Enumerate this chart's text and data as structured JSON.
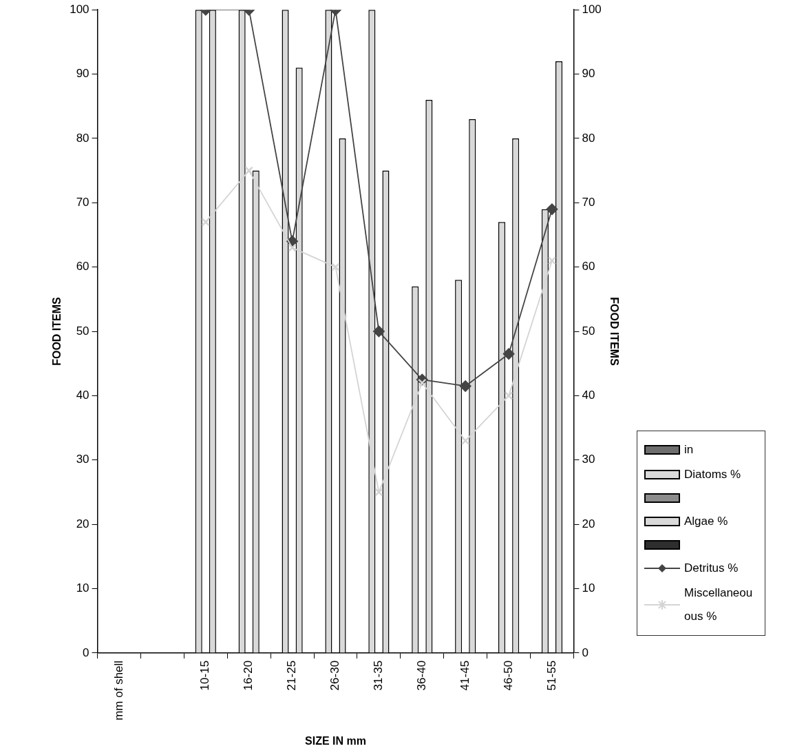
{
  "chart_data": {
    "type": "bar",
    "xlabel": "SIZE IN mm",
    "ylabel": "FOOD ITEMS",
    "y2label": "FOOD ITEMS",
    "categories": [
      "mm of shell",
      null,
      "10-15",
      "16-20",
      "21-25",
      "26-30",
      "31-35",
      "36-40",
      "41-45",
      "46-50",
      "51-55"
    ],
    "ylim": [
      0,
      100
    ],
    "yticks": [
      0,
      10,
      20,
      30,
      40,
      50,
      60,
      70,
      80,
      90,
      100
    ],
    "y2lim": [
      0,
      100
    ],
    "y2ticks": [
      0,
      10,
      20,
      30,
      40,
      50,
      60,
      70,
      80,
      90,
      100
    ],
    "legend": "right",
    "series": [
      {
        "name": "in",
        "color": "#6e6e6e",
        "values": [
          null,
          null,
          null,
          null,
          null,
          null,
          null,
          null,
          null,
          null,
          null
        ]
      },
      {
        "name": "Diatoms %",
        "color": "#d9d9d9",
        "values": [
          null,
          null,
          100,
          100,
          100,
          100,
          100,
          57,
          58,
          67,
          69
        ]
      },
      {
        "color": "#8c8c8c",
        "values": [
          null,
          null,
          null,
          null,
          null,
          null,
          null,
          null,
          null,
          null,
          null
        ]
      },
      {
        "name": "Algae %",
        "color": "#d9d9d9",
        "values": [
          null,
          null,
          100,
          75,
          91,
          80,
          75,
          86,
          83,
          80,
          92
        ]
      },
      {
        "color": "#2e2e2e",
        "values": [
          null,
          null,
          null,
          null,
          null,
          null,
          null,
          null,
          null,
          null,
          null
        ]
      },
      {
        "name": "Detritus %",
        "type": "line",
        "color": "#444444",
        "marker": "diamond",
        "values": [
          null,
          null,
          100,
          100,
          64,
          100,
          50,
          42.5,
          41.5,
          46.5,
          69
        ]
      },
      {
        "name": "Miscellaneou ous %",
        "type": "line",
        "color": "#d4d4d4",
        "marker": "cross",
        "values": [
          null,
          null,
          67,
          75,
          63,
          60,
          25,
          42,
          33,
          40,
          61
        ]
      }
    ]
  }
}
